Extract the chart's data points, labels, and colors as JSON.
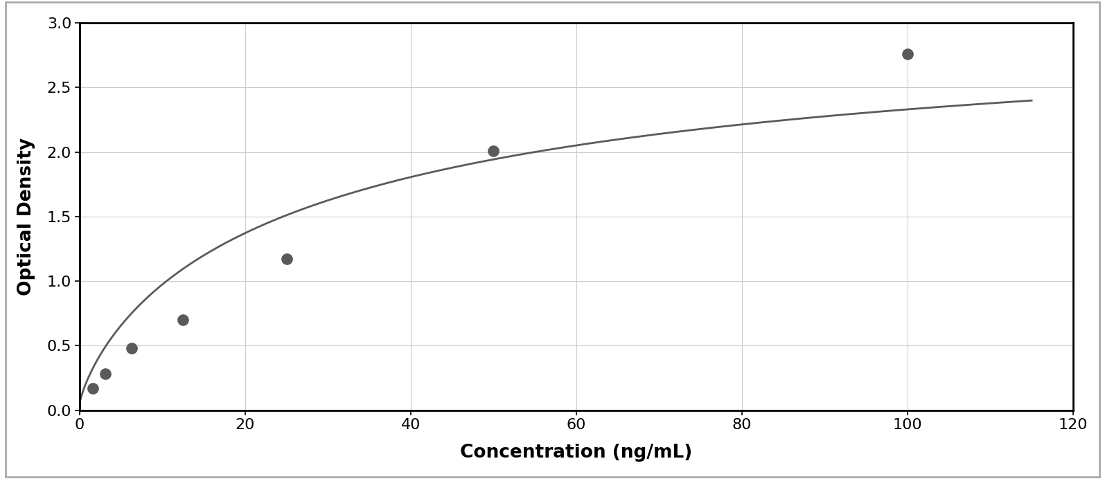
{
  "x_data": [
    1.56,
    3.125,
    6.25,
    12.5,
    25,
    50,
    100
  ],
  "y_data": [
    0.17,
    0.28,
    0.48,
    0.7,
    1.17,
    2.01,
    2.76
  ],
  "xlabel": "Concentration (ng/mL)",
  "ylabel": "Optical Density",
  "xlim": [
    0,
    120
  ],
  "ylim": [
    0,
    3
  ],
  "xticks": [
    0,
    20,
    40,
    60,
    80,
    100,
    120
  ],
  "yticks": [
    0,
    0.5,
    1.0,
    1.5,
    2.0,
    2.5,
    3.0
  ],
  "marker_color": "#5a5a5a",
  "line_color": "#5a5a5a",
  "grid_color": "#cccccc",
  "background_color": "#ffffff",
  "border_color": "#000000",
  "outer_border_color": "#aaaaaa",
  "marker_size": 11,
  "line_width": 2.0,
  "xlabel_fontsize": 19,
  "ylabel_fontsize": 19,
  "tick_fontsize": 16
}
